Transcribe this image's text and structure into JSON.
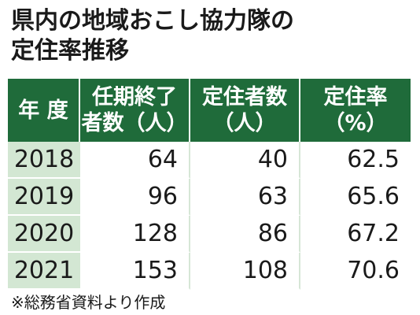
{
  "title": [
    "県内の地域おこし協力隊の",
    "定住率推移"
  ],
  "table": {
    "header": [
      [
        "年 度"
      ],
      [
        "任期終了",
        "者数（人）"
      ],
      [
        "定住者数",
        "（人）"
      ],
      [
        "定住率",
        "（%）"
      ]
    ],
    "rows": [
      [
        2018,
        64,
        40,
        62.5
      ],
      [
        2019,
        96,
        63,
        65.6
      ],
      [
        2020,
        128,
        86,
        67.2
      ],
      [
        2021,
        153,
        108,
        70.6
      ]
    ]
  },
  "note": "※総務省資料より作成"
}
